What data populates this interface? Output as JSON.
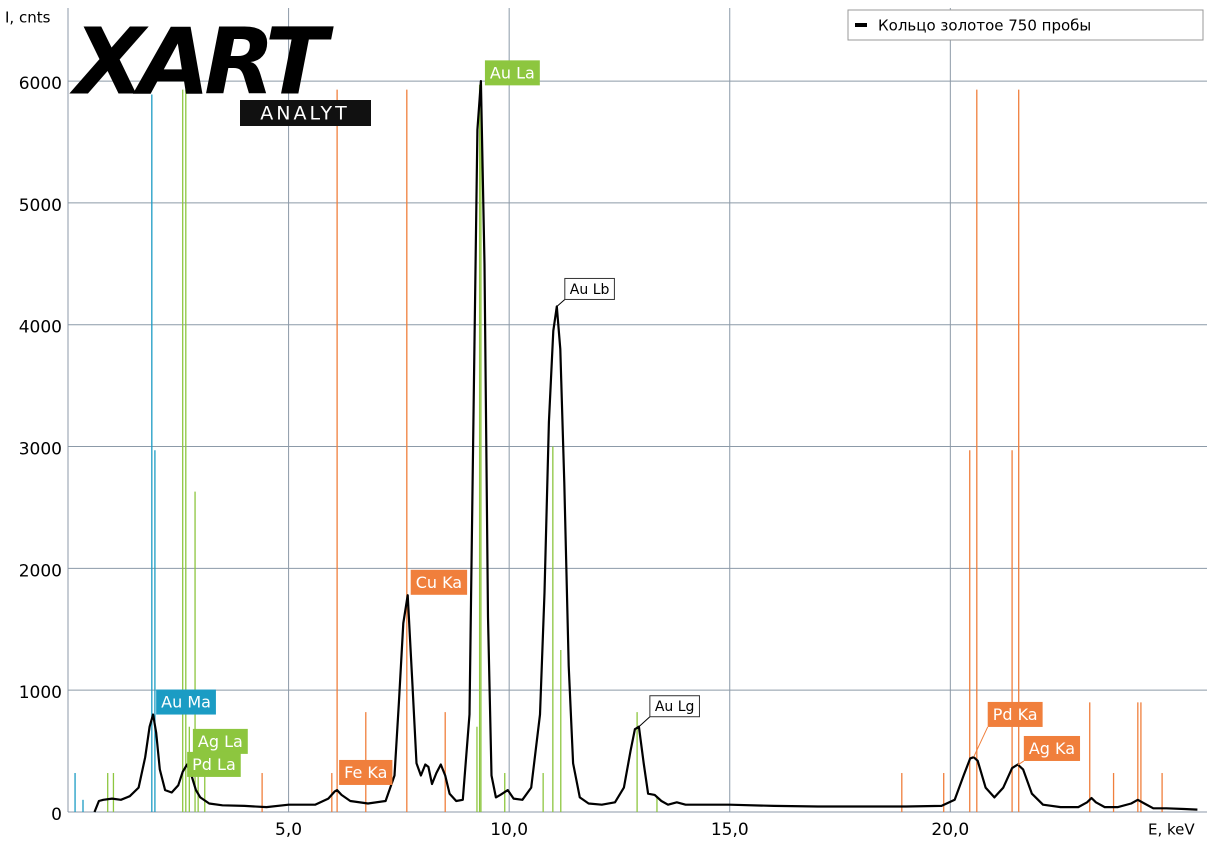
{
  "chart_data": {
    "type": "line",
    "logo": {
      "mark": "XART",
      "name": "ANALYT"
    },
    "ylabel": "I, cnts",
    "xlabel": "E, keV",
    "xlim": [
      0,
      25.75
    ],
    "ylim": [
      0,
      6600
    ],
    "xticks": [
      {
        "value": 5,
        "label": "5,0"
      },
      {
        "value": 10,
        "label": "10,0"
      },
      {
        "value": 15,
        "label": "15,0"
      },
      {
        "value": 20,
        "label": "20,0"
      }
    ],
    "yticks": [
      0,
      1000,
      2000,
      3000,
      4000,
      5000,
      6000
    ],
    "grid": true,
    "legend": "top-right",
    "series": [
      {
        "name": "Кольцо золотое 750 пробы",
        "color": "#000000",
        "x": [
          0.6,
          0.7,
          0.8,
          1.0,
          1.2,
          1.4,
          1.6,
          1.75,
          1.85,
          1.93,
          2.0,
          2.08,
          2.2,
          2.35,
          2.5,
          2.6,
          2.7,
          2.8,
          2.9,
          3.0,
          3.2,
          3.5,
          4.0,
          4.5,
          5.0,
          5.3,
          5.6,
          5.9,
          6.05,
          6.1,
          6.2,
          6.4,
          6.8,
          7.2,
          7.4,
          7.5,
          7.6,
          7.7,
          7.8,
          7.9,
          8.0,
          8.1,
          8.17,
          8.25,
          8.35,
          8.45,
          8.55,
          8.65,
          8.8,
          8.95,
          9.1,
          9.2,
          9.28,
          9.36,
          9.44,
          9.52,
          9.6,
          9.7,
          9.8,
          9.97,
          10.1,
          10.3,
          10.5,
          10.7,
          10.8,
          10.9,
          11.0,
          11.08,
          11.16,
          11.25,
          11.35,
          11.45,
          11.6,
          11.8,
          12.1,
          12.4,
          12.6,
          12.75,
          12.85,
          12.94,
          13.05,
          13.15,
          13.3,
          13.45,
          13.6,
          13.8,
          14.0,
          15,
          16,
          17,
          18,
          19,
          19.8,
          20.1,
          20.3,
          20.45,
          20.53,
          20.62,
          20.8,
          21.0,
          21.2,
          21.4,
          21.53,
          21.65,
          21.85,
          22.1,
          22.5,
          22.9,
          23.1,
          23.2,
          23.3,
          23.5,
          23.8,
          24.1,
          24.25,
          24.4,
          24.6,
          24.9,
          25.3,
          25.6
        ],
        "values": [
          0,
          90,
          100,
          110,
          100,
          130,
          200,
          450,
          700,
          800,
          650,
          350,
          180,
          160,
          220,
          330,
          390,
          300,
          180,
          120,
          70,
          55,
          50,
          40,
          60,
          60,
          60,
          110,
          170,
          180,
          140,
          90,
          70,
          90,
          300,
          900,
          1550,
          1780,
          1100,
          400,
          300,
          390,
          370,
          230,
          320,
          390,
          300,
          150,
          90,
          100,
          800,
          3500,
          5600,
          6000,
          4500,
          1600,
          300,
          120,
          140,
          180,
          110,
          100,
          200,
          800,
          1800,
          3200,
          3950,
          4150,
          3800,
          2700,
          1200,
          400,
          120,
          70,
          60,
          80,
          200,
          500,
          680,
          700,
          400,
          150,
          140,
          90,
          60,
          80,
          60,
          60,
          50,
          45,
          45,
          45,
          50,
          100,
          300,
          440,
          450,
          420,
          200,
          120,
          200,
          360,
          390,
          350,
          150,
          60,
          40,
          40,
          80,
          115,
          80,
          40,
          40,
          70,
          100,
          70,
          30,
          30,
          25,
          20
        ]
      }
    ],
    "lines": [
      {
        "color": "#1b9cc4",
        "x": [
          0.16,
          0.34,
          1.9,
          1.97
        ],
        "values": [
          320,
          100,
          5890,
          2970
        ]
      },
      {
        "color": "#8dc63f",
        "x": [
          0.9,
          1.03,
          2.6,
          2.67,
          2.88,
          2.75,
          2.95,
          3.1,
          9.27,
          9.33,
          9.36,
          9.9,
          10.77,
          10.99,
          11.17,
          12.9,
          13.35
        ],
        "values": [
          320,
          320,
          5930,
          5930,
          2630,
          700,
          500,
          300,
          700,
          5970,
          5970,
          320,
          320,
          3000,
          1330,
          820,
          120
        ]
      },
      {
        "color": "#f07f3c",
        "x": [
          4.4,
          5.98,
          6.1,
          6.75,
          7.68,
          8.55,
          18.9,
          19.85,
          20.44,
          20.6,
          21.4,
          21.55,
          23.16,
          23.7,
          24.25,
          24.32,
          24.8
        ],
        "values": [
          320,
          320,
          5930,
          820,
          5930,
          820,
          320,
          320,
          2970,
          5930,
          2970,
          5930,
          900,
          320,
          900,
          900,
          320
        ]
      }
    ],
    "annotations": [
      {
        "text": "Au Ma",
        "x": 1.93,
        "y": 800,
        "color": "#1b9cc4"
      },
      {
        "text": "Ag La",
        "x": 2.74,
        "y": 477,
        "color": "#8dc63f"
      },
      {
        "text": "Pd La",
        "x": 2.61,
        "y": 288,
        "color": "#8dc63f"
      },
      {
        "text": "Fe Ka",
        "x": 6.1,
        "y": 222,
        "color": "#f07f3c"
      },
      {
        "text": "Cu Ka",
        "x": 7.7,
        "y": 1783,
        "color": "#f07f3c"
      },
      {
        "text": "Au La",
        "x": 9.36,
        "y": 5965,
        "color": "#8dc63f"
      },
      {
        "text": "Au Lb",
        "x": 11.08,
        "y": 4150,
        "color": "#ffffff"
      },
      {
        "text": "Au Lg",
        "x": 12.94,
        "y": 700,
        "color": "#ffffff"
      },
      {
        "text": "Pd Ka",
        "x": 20.53,
        "y": 452,
        "color": "#f07f3c"
      },
      {
        "text": "Ag Ka",
        "x": 21.53,
        "y": 386,
        "color": "#f07f3c"
      }
    ]
  }
}
